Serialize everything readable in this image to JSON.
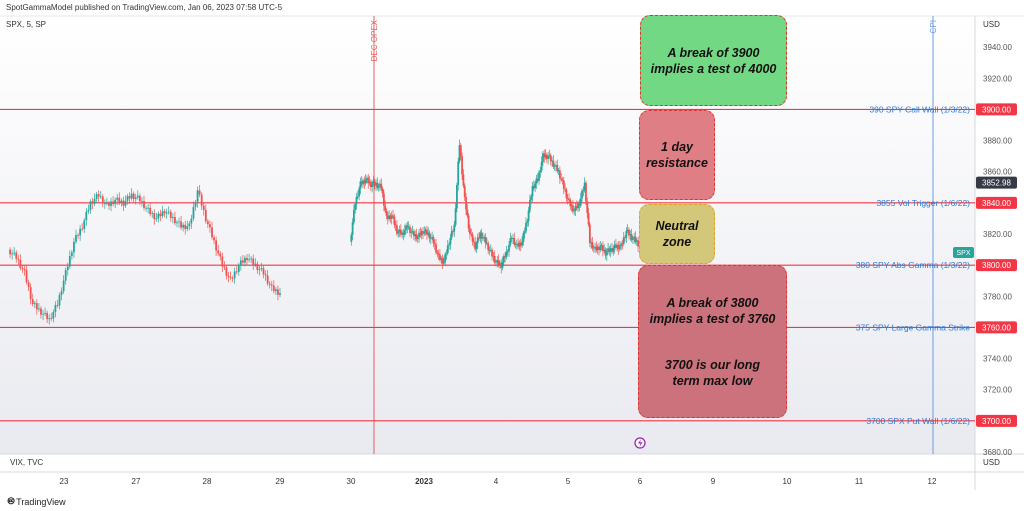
{
  "header": {
    "published": "SpotGammaModel published on TradingView.com, Jan 06, 2023 07:58 UTC-5",
    "symbol": "SPX, 5, SP",
    "sub_panel": "VIX, TVC",
    "currency": "USD",
    "currency_bottom": "USD",
    "brand": "TradingView"
  },
  "axis": {
    "ylim": [
      3680,
      3960
    ],
    "y_ticks": [
      "3940.00",
      "3920.00",
      "3880.00",
      "3860.00",
      "3820.00",
      "3780.00",
      "3740.00",
      "3720.00",
      "3680.00"
    ],
    "x_ticks": [
      "23",
      "27",
      "28",
      "29",
      "30",
      "2023",
      "4",
      "5",
      "6",
      "9",
      "10",
      "11",
      "12"
    ]
  },
  "chart_data": {
    "type": "line",
    "series": [
      {
        "values": [
          3810,
          3805,
          3795,
          3775,
          3770,
          3765,
          3775,
          3795,
          3815,
          3825,
          3840,
          3845,
          3838,
          3842,
          3840,
          3845,
          3842,
          3835,
          3830,
          3835,
          3830,
          3825,
          3825,
          3848,
          3830,
          3815,
          3800,
          3790,
          3800,
          3805,
          3800,
          3795,
          3785,
          3782,
          3815,
          3840,
          3852,
          3855,
          3852,
          3852,
          3850,
          3830,
          3832,
          3822,
          3820,
          3825,
          3820,
          3818,
          3822,
          3820,
          3815,
          3805,
          3802,
          3815,
          3825,
          3878,
          3842,
          3820,
          3812,
          3820,
          3815,
          3808,
          3802,
          3800,
          3808,
          3818,
          3812,
          3815,
          3830,
          3850,
          3855,
          3870,
          3870,
          3865,
          3860,
          3850,
          3840,
          3835,
          3840,
          3852,
          3815,
          3810,
          3812,
          3808,
          3810,
          3812,
          3812,
          3822,
          3818,
          3815,
          3810
        ]
      }
    ],
    "current_price": "3852.98",
    "symbol_tag": "SPX",
    "levels": [
      {
        "value": 3900,
        "price_label": "3900.00",
        "label": "390 SPY Call Wall (1/3/22)"
      },
      {
        "value": 3840,
        "price_label": "3840.00",
        "label": "3855 Vol Trigger (1/6/22)"
      },
      {
        "value": 3800,
        "price_label": "3800.00",
        "label": "380 SPY Abs Gamma (1/3/22)"
      },
      {
        "value": 3760,
        "price_label": "3760.00",
        "label": "375 SPY Large Gamma Strike"
      },
      {
        "value": 3700,
        "price_label": "3700.00",
        "label": "3700 SPX Put Wall (1/6/22)"
      }
    ],
    "events": [
      {
        "label": "DEC OPEX",
        "color": "#e06060"
      },
      {
        "label": "CPI",
        "color": "#6a9de0"
      }
    ],
    "colors": {
      "up": "#26a69a",
      "down": "#ef5350",
      "level": "#f23645",
      "price_tag": "#363a45",
      "symbol_tag": "#26a69a"
    }
  },
  "annotations": {
    "green": {
      "line1": "A break of 3900",
      "line2": "implies a test of 4000"
    },
    "red1": {
      "line1": "1 day",
      "line2": "resistance"
    },
    "yellow": {
      "line1": "Neutral",
      "line2": "zone"
    },
    "red2": {
      "line1": "A break of 3800",
      "line2": "implies a test of 3760",
      "line3": "3700 is our long",
      "line4": "term max low"
    }
  }
}
